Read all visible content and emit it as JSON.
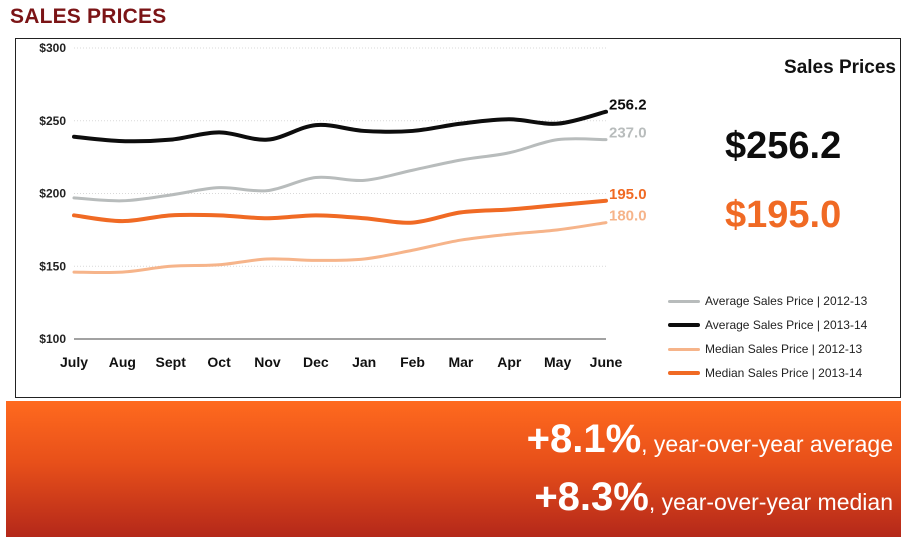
{
  "page_title": "SALES PRICES",
  "panel_title": "Sales Prices",
  "big_avg": "$256.2",
  "big_median": "$195.0",
  "colors": {
    "title": "#7b1416",
    "avg_2012": "#b8bcbc",
    "avg_2013": "#0d0d0d",
    "med_2012": "#f6b48a",
    "med_2013": "#f06a24"
  },
  "banner": {
    "row1_value": "+8.1%",
    "row1_text": ", year-over-year average",
    "row2_value": "+8.3%",
    "row2_text": ", year-over-year median"
  },
  "chart_data": {
    "type": "line",
    "categories": [
      "July",
      "Aug",
      "Sept",
      "Oct",
      "Nov",
      "Dec",
      "Jan",
      "Feb",
      "Mar",
      "Apr",
      "May",
      "June"
    ],
    "ylim": [
      100,
      300
    ],
    "yticks": [
      100,
      150,
      200,
      250,
      300
    ],
    "ytick_labels": [
      "$100",
      "$150",
      "$200",
      "$250",
      "$300"
    ],
    "grid": true,
    "legend_position": "right",
    "series": [
      {
        "name": "Average Sales Price | 2012-13",
        "color": "#b8bcbc",
        "width": 3,
        "values": [
          197,
          195,
          199,
          204,
          202,
          211,
          209,
          216,
          223,
          228,
          237,
          237.0
        ],
        "end_label": "237.0"
      },
      {
        "name": "Average Sales Price | 2013-14",
        "color": "#0d0d0d",
        "width": 4,
        "values": [
          239,
          236,
          237,
          242,
          237,
          247,
          243,
          243,
          248,
          251,
          248,
          256.2
        ],
        "end_label": "256.2"
      },
      {
        "name": "Median Sales Price | 2012-13",
        "color": "#f6b48a",
        "width": 3,
        "values": [
          146,
          146,
          150,
          151,
          155,
          154,
          155,
          161,
          168,
          172,
          175,
          180.0
        ],
        "end_label": "180.0"
      },
      {
        "name": "Median Sales Price | 2013-14",
        "color": "#f06a24",
        "width": 4,
        "values": [
          185,
          181,
          185,
          185,
          183,
          185,
          183,
          180,
          187,
          189,
          192,
          195.0
        ],
        "end_label": "195.0"
      }
    ]
  }
}
